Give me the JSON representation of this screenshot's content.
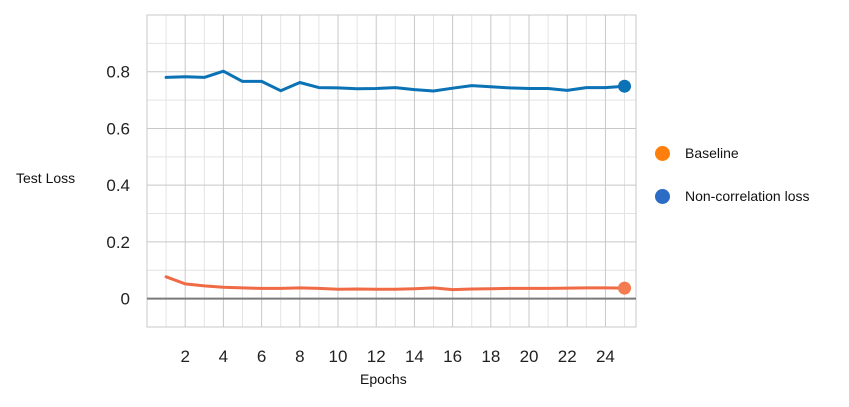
{
  "chart_data": {
    "type": "line",
    "xlabel": "Epochs",
    "ylabel": "Test Loss",
    "xlim": [
      0,
      25.6
    ],
    "ylim": [
      -0.1,
      1.0
    ],
    "x_ticks": [
      2,
      4,
      6,
      8,
      10,
      12,
      14,
      16,
      18,
      20,
      22,
      24
    ],
    "y_ticks": [
      0,
      0.2,
      0.4,
      0.6,
      0.8
    ],
    "y_tick_labels": [
      "0",
      "0.2",
      "0.4",
      "0.6",
      "0.8"
    ],
    "grid": true,
    "legend_position": "right",
    "series": [
      {
        "name": "Baseline",
        "color": "#ef6a45",
        "marker_color": "#f47a50",
        "legend_color": "#ff7f0e",
        "x": [
          1,
          2,
          3,
          4,
          5,
          6,
          7,
          8,
          9,
          10,
          11,
          12,
          13,
          14,
          15,
          16,
          17,
          18,
          19,
          20,
          21,
          22,
          23,
          24,
          25
        ],
        "y": [
          0.077,
          0.052,
          0.045,
          0.04,
          0.038,
          0.036,
          0.036,
          0.038,
          0.036,
          0.033,
          0.034,
          0.033,
          0.033,
          0.035,
          0.038,
          0.032,
          0.034,
          0.035,
          0.036,
          0.036,
          0.036,
          0.037,
          0.038,
          0.038,
          0.037
        ]
      },
      {
        "name": "Non-correlation loss",
        "color": "#0a72b5",
        "marker_color": "#0a72b5",
        "legend_color": "#2b6cc4",
        "x": [
          1,
          2,
          3,
          4,
          5,
          6,
          7,
          8,
          9,
          10,
          11,
          12,
          13,
          14,
          15,
          16,
          17,
          18,
          19,
          20,
          21,
          22,
          23,
          24,
          25
        ],
        "y": [
          0.78,
          0.782,
          0.78,
          0.802,
          0.766,
          0.766,
          0.733,
          0.762,
          0.744,
          0.743,
          0.74,
          0.741,
          0.744,
          0.737,
          0.732,
          0.742,
          0.751,
          0.747,
          0.743,
          0.741,
          0.741,
          0.734,
          0.744,
          0.744,
          0.749
        ]
      }
    ]
  }
}
